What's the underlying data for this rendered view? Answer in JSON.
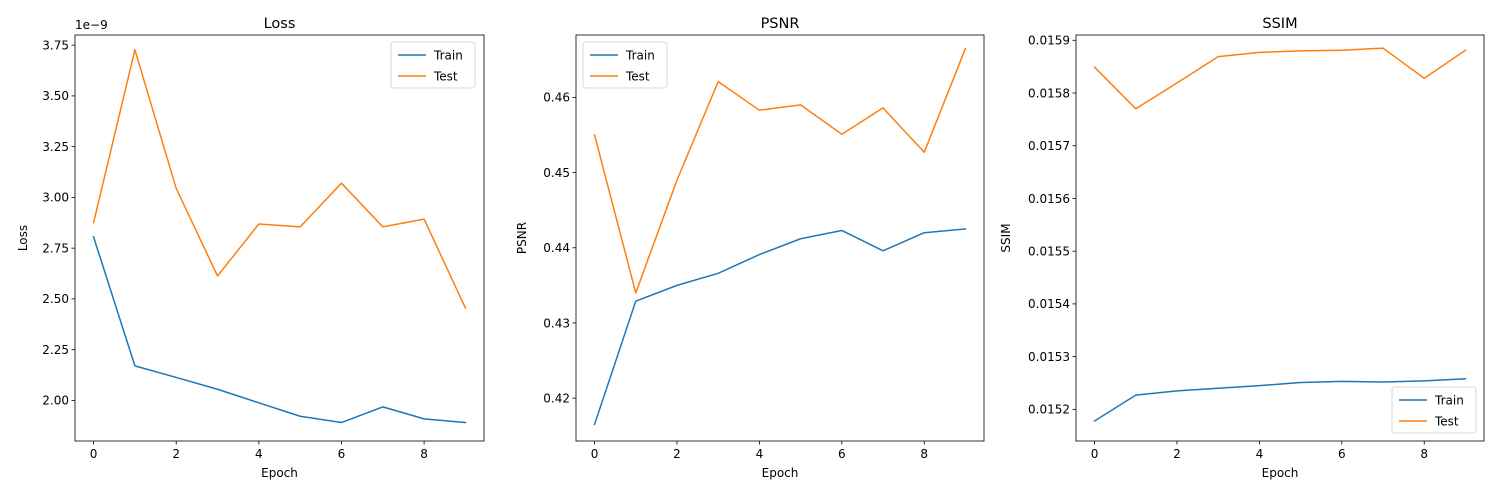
{
  "colors": {
    "train": "#1f77b4",
    "test": "#ff7f0e"
  },
  "chart_data": [
    {
      "type": "line",
      "title": "Loss",
      "xlabel": "Epoch",
      "ylabel": "Loss",
      "offset_text": "1e−9",
      "legend_position": "upper right",
      "grid": false,
      "xlim": [
        -0.45,
        9.45
      ],
      "ylim": [
        1.8,
        3.8
      ],
      "x_ticks": [
        0,
        2,
        4,
        6,
        8
      ],
      "x_tick_labels": [
        "0",
        "2",
        "4",
        "6",
        "8"
      ],
      "y_ticks": [
        2.0,
        2.25,
        2.5,
        2.75,
        3.0,
        3.25,
        3.5,
        3.75
      ],
      "y_tick_labels": [
        "2.00",
        "2.25",
        "2.50",
        "2.75",
        "3.00",
        "3.25",
        "3.50",
        "3.75"
      ],
      "x": [
        0,
        1,
        2,
        3,
        4,
        5,
        6,
        7,
        8,
        9
      ],
      "series": [
        {
          "name": "Train",
          "color": "#1f77b4",
          "values": [
            2.805,
            2.17,
            2.113,
            2.055,
            1.988,
            1.922,
            1.891,
            1.968,
            1.909,
            1.891
          ]
        },
        {
          "name": "Test",
          "color": "#ff7f0e",
          "values": [
            2.876,
            3.727,
            3.044,
            2.613,
            2.869,
            2.855,
            3.07,
            2.855,
            2.893,
            2.455
          ]
        }
      ]
    },
    {
      "type": "line",
      "title": "PSNR",
      "xlabel": "Epoch",
      "ylabel": "PSNR",
      "offset_text": "",
      "legend_position": "upper left",
      "grid": false,
      "xlim": [
        -0.45,
        9.45
      ],
      "ylim": [
        0.4143,
        0.4683
      ],
      "x_ticks": [
        0,
        2,
        4,
        6,
        8
      ],
      "x_tick_labels": [
        "0",
        "2",
        "4",
        "6",
        "8"
      ],
      "y_ticks": [
        0.42,
        0.43,
        0.44,
        0.45,
        0.46
      ],
      "y_tick_labels": [
        "0.42",
        "0.43",
        "0.44",
        "0.45",
        "0.46"
      ],
      "x": [
        0,
        1,
        2,
        3,
        4,
        5,
        6,
        7,
        8,
        9
      ],
      "series": [
        {
          "name": "Train",
          "color": "#1f77b4",
          "values": [
            0.4165,
            0.4329,
            0.435,
            0.4366,
            0.4391,
            0.4412,
            0.4423,
            0.4396,
            0.442,
            0.4425
          ]
        },
        {
          "name": "Test",
          "color": "#ff7f0e",
          "values": [
            0.455,
            0.434,
            0.449,
            0.4621,
            0.4583,
            0.459,
            0.4551,
            0.4586,
            0.4527,
            0.4665
          ]
        }
      ]
    },
    {
      "type": "line",
      "title": "SSIM",
      "xlabel": "Epoch",
      "ylabel": "SSIM",
      "offset_text": "",
      "legend_position": "lower right",
      "grid": false,
      "xlim": [
        -0.45,
        9.45
      ],
      "ylim": [
        0.01514,
        0.01591
      ],
      "x_ticks": [
        0,
        2,
        4,
        6,
        8
      ],
      "x_tick_labels": [
        "0",
        "2",
        "4",
        "6",
        "8"
      ],
      "y_ticks": [
        0.0152,
        0.0153,
        0.0154,
        0.0155,
        0.0156,
        0.0157,
        0.0158,
        0.0159
      ],
      "y_tick_labels": [
        "0.0152",
        "0.0153",
        "0.0154",
        "0.0155",
        "0.0156",
        "0.0157",
        "0.0158",
        "0.0159"
      ],
      "x": [
        0,
        1,
        2,
        3,
        4,
        5,
        6,
        7,
        8,
        9
      ],
      "series": [
        {
          "name": "Train",
          "color": "#1f77b4",
          "values": [
            0.015178,
            0.015227,
            0.015235,
            0.01524,
            0.015245,
            0.015251,
            0.015253,
            0.015252,
            0.015254,
            0.015258
          ]
        },
        {
          "name": "Test",
          "color": "#ff7f0e",
          "values": [
            0.015849,
            0.01577,
            0.015819,
            0.015869,
            0.015877,
            0.01588,
            0.015881,
            0.015885,
            0.015828,
            0.015881
          ]
        }
      ]
    }
  ]
}
